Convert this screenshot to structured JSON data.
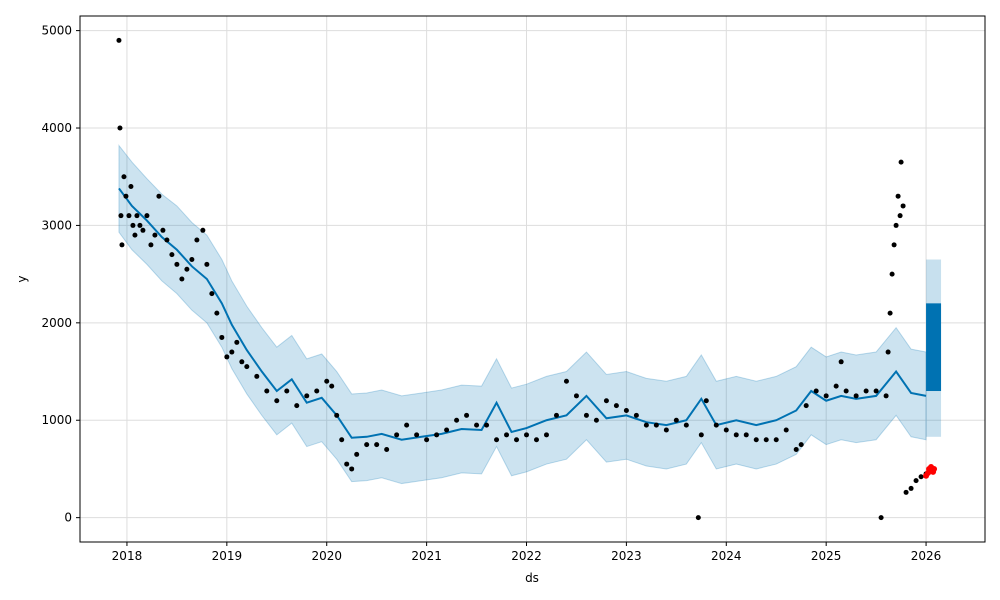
{
  "chart_data": {
    "type": "scatter",
    "xlabel": "ds",
    "ylabel": "y",
    "x_ticks": [
      "2018",
      "2019",
      "2020",
      "2021",
      "2022",
      "2023",
      "2024",
      "2025",
      "2026"
    ],
    "y_ticks": [
      0,
      1000,
      2000,
      3000,
      4000,
      5000
    ],
    "xlim": [
      2017.53,
      2026.59
    ],
    "ylim": [
      -250,
      5150
    ],
    "grid": true,
    "colors": {
      "observed": "#000000",
      "forecast": "#0072B2",
      "interval": "#0072B2",
      "highlight": "#ff0000"
    },
    "forecast": {
      "x": [
        2017.92,
        2018.05,
        2018.2,
        2018.35,
        2018.5,
        2018.65,
        2018.8,
        2018.95,
        2019.05,
        2019.2,
        2019.35,
        2019.5,
        2019.65,
        2019.8,
        2019.95,
        2020.1,
        2020.25,
        2020.4,
        2020.55,
        2020.75,
        2020.95,
        2021.15,
        2021.35,
        2021.55,
        2021.7,
        2021.85,
        2022.0,
        2022.2,
        2022.4,
        2022.6,
        2022.8,
        2023.0,
        2023.2,
        2023.4,
        2023.6,
        2023.75,
        2023.9,
        2024.1,
        2024.3,
        2024.5,
        2024.7,
        2024.85,
        2025.0,
        2025.15,
        2025.3,
        2025.5,
        2025.7,
        2025.85,
        2026.0
      ],
      "y": [
        3380,
        3200,
        3050,
        2880,
        2750,
        2580,
        2450,
        2200,
        1980,
        1720,
        1500,
        1300,
        1420,
        1180,
        1230,
        1050,
        820,
        830,
        860,
        800,
        830,
        860,
        910,
        900,
        1180,
        880,
        920,
        1000,
        1050,
        1250,
        1020,
        1050,
        980,
        950,
        1000,
        1220,
        950,
        1000,
        950,
        1000,
        1100,
        1300,
        1200,
        1250,
        1220,
        1250,
        1500,
        1280,
        1250
      ],
      "upper": [
        3820,
        3650,
        3480,
        3320,
        3200,
        3030,
        2900,
        2650,
        2430,
        2170,
        1950,
        1750,
        1870,
        1630,
        1680,
        1500,
        1270,
        1280,
        1310,
        1250,
        1280,
        1310,
        1360,
        1350,
        1630,
        1330,
        1370,
        1450,
        1500,
        1700,
        1470,
        1500,
        1430,
        1400,
        1450,
        1670,
        1400,
        1450,
        1400,
        1450,
        1550,
        1750,
        1650,
        1700,
        1670,
        1700,
        1950,
        1730,
        1700
      ],
      "lower": [
        2930,
        2750,
        2600,
        2430,
        2300,
        2130,
        2000,
        1750,
        1530,
        1270,
        1050,
        850,
        970,
        730,
        780,
        600,
        370,
        380,
        410,
        350,
        380,
        410,
        460,
        450,
        730,
        430,
        470,
        550,
        600,
        800,
        570,
        600,
        530,
        500,
        550,
        770,
        500,
        550,
        500,
        550,
        650,
        850,
        750,
        800,
        770,
        800,
        1050,
        830,
        800
      ]
    },
    "forecast_band": {
      "x_start": 2026.0,
      "x_end": 2026.15,
      "y_low": 1300,
      "y_high": 2200,
      "interval_low": 830,
      "interval_high": 2650
    },
    "observed": {
      "x": [
        2017.92,
        2017.93,
        2017.94,
        2017.95,
        2017.97,
        2017.99,
        2018.02,
        2018.04,
        2018.06,
        2018.08,
        2018.1,
        2018.13,
        2018.16,
        2018.2,
        2018.24,
        2018.28,
        2018.32,
        2018.36,
        2018.4,
        2018.45,
        2018.5,
        2018.55,
        2018.6,
        2018.65,
        2018.7,
        2018.76,
        2018.8,
        2018.85,
        2018.9,
        2018.95,
        2019.0,
        2019.05,
        2019.1,
        2019.15,
        2019.2,
        2019.3,
        2019.4,
        2019.5,
        2019.6,
        2019.7,
        2019.8,
        2019.9,
        2020.0,
        2020.05,
        2020.1,
        2020.15,
        2020.2,
        2020.25,
        2020.3,
        2020.4,
        2020.5,
        2020.6,
        2020.7,
        2020.8,
        2020.9,
        2021.0,
        2021.1,
        2021.2,
        2021.3,
        2021.4,
        2021.5,
        2021.6,
        2021.7,
        2021.8,
        2021.9,
        2022.0,
        2022.1,
        2022.2,
        2022.3,
        2022.4,
        2022.5,
        2022.6,
        2022.7,
        2022.8,
        2022.9,
        2023.0,
        2023.1,
        2023.2,
        2023.3,
        2023.4,
        2023.5,
        2023.6,
        2023.72,
        2023.75,
        2023.8,
        2023.9,
        2024.0,
        2024.1,
        2024.2,
        2024.3,
        2024.4,
        2024.5,
        2024.6,
        2024.7,
        2024.75,
        2024.8,
        2024.9,
        2025.0,
        2025.1,
        2025.15,
        2025.2,
        2025.3,
        2025.4,
        2025.5,
        2025.55,
        2025.6,
        2025.62,
        2025.64,
        2025.66,
        2025.68,
        2025.7,
        2025.72,
        2025.74,
        2025.75,
        2025.77,
        2025.8,
        2025.85,
        2025.9,
        2025.95,
        2026.0
      ],
      "y": [
        4900,
        4000,
        3100,
        2800,
        3500,
        3300,
        3100,
        3400,
        3000,
        2900,
        3100,
        3000,
        2950,
        3100,
        2800,
        2900,
        3300,
        2950,
        2850,
        2700,
        2600,
        2450,
        2550,
        2650,
        2850,
        2950,
        2600,
        2300,
        2100,
        1850,
        1650,
        1700,
        1800,
        1600,
        1550,
        1450,
        1300,
        1200,
        1300,
        1150,
        1250,
        1300,
        1400,
        1350,
        1050,
        800,
        550,
        500,
        650,
        750,
        750,
        700,
        850,
        950,
        850,
        800,
        850,
        900,
        1000,
        1050,
        950,
        950,
        800,
        850,
        800,
        850,
        800,
        850,
        1050,
        1400,
        1250,
        1050,
        1000,
        1200,
        1150,
        1100,
        1050,
        950,
        950,
        900,
        1000,
        950,
        0,
        850,
        1200,
        950,
        900,
        850,
        850,
        800,
        800,
        800,
        900,
        700,
        750,
        1150,
        1300,
        1250,
        1350,
        1600,
        1300,
        1250,
        1300,
        1300,
        0,
        1250,
        1700,
        2100,
        2500,
        2800,
        3000,
        3300,
        3100,
        3650,
        3200,
        260,
        300,
        380,
        420,
        450
      ],
      "highlight_x": [
        2026.0,
        2026.02,
        2026.03,
        2026.05,
        2026.06,
        2026.07,
        2026.08
      ],
      "highlight_y": [
        430,
        460,
        500,
        520,
        480,
        470,
        500
      ]
    }
  }
}
